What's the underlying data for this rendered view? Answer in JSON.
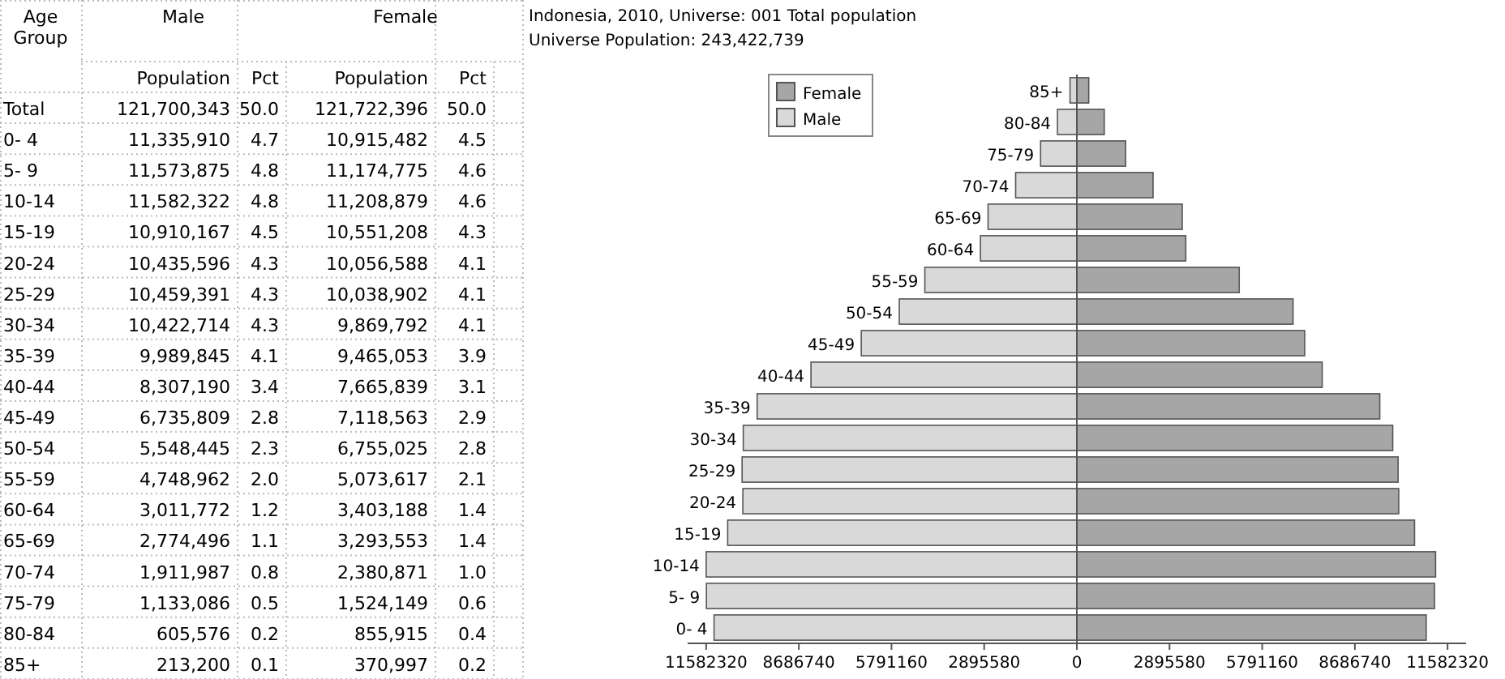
{
  "chart_data": [
    {
      "type": "other",
      "annotations": [
        "Age Group",
        "Male",
        "Female",
        "Population",
        "Pct",
        "Population",
        "Pct"
      ],
      "categories": [
        "Total",
        "0- 4",
        "5- 9",
        "10-14",
        "15-19",
        "20-24",
        "25-29",
        "30-34",
        "35-39",
        "40-44",
        "45-49",
        "50-54",
        "55-59",
        "60-64",
        "65-69",
        "70-74",
        "75-79",
        "80-84",
        "85+"
      ],
      "series": [
        {
          "values": [
            121700343,
            11335910,
            11573875,
            11582322,
            10910167,
            10435596,
            10459391,
            10422714,
            9989845,
            8307190,
            6735809,
            5548445,
            4748962,
            3011772,
            2774496,
            1911987,
            1133086,
            605576,
            213200
          ],
          "value_labels": [
            "121,700,343",
            "11,335,910",
            "11,573,875",
            "11,582,322",
            "10,910,167",
            "10,435,596",
            "10,459,391",
            "10,422,714",
            "9,989,845",
            "8,307,190",
            "6,735,809",
            "5,548,445",
            "4,748,962",
            "3,011,772",
            "2,774,496",
            "1,911,987",
            "1,133,086",
            "605,576",
            "213,200"
          ]
        },
        {
          "values": [
            50.0,
            4.7,
            4.8,
            4.8,
            4.5,
            4.3,
            4.3,
            4.3,
            4.1,
            3.4,
            2.8,
            2.3,
            2.0,
            1.2,
            1.1,
            0.8,
            0.5,
            0.2,
            0.1
          ],
          "value_labels": [
            "50.0",
            "4.7",
            "4.8",
            "4.8",
            "4.5",
            "4.3",
            "4.3",
            "4.3",
            "4.1",
            "3.4",
            "2.8",
            "2.3",
            "2.0",
            "1.2",
            "1.1",
            "0.8",
            "0.5",
            "0.2",
            "0.1"
          ]
        },
        {
          "values": [
            121722396,
            10915482,
            11174775,
            11208879,
            10551208,
            10056588,
            10038902,
            9869792,
            9465053,
            7665839,
            7118563,
            6755025,
            5073617,
            3403188,
            3293553,
            2380871,
            1524149,
            855915,
            370997
          ],
          "value_labels": [
            "121,722,396",
            "10,915,482",
            "11,174,775",
            "11,208,879",
            "10,551,208",
            "10,056,588",
            "10,038,902",
            "9,869,792",
            "9,465,053",
            "7,665,839",
            "7,118,563",
            "6,755,025",
            "5,073,617",
            "3,403,188",
            "3,293,553",
            "2,380,871",
            "1,524,149",
            "855,915",
            "370,997"
          ]
        },
        {
          "values": [
            50.0,
            4.5,
            4.6,
            4.6,
            4.3,
            4.1,
            4.1,
            4.1,
            3.9,
            3.1,
            2.9,
            2.8,
            2.1,
            1.4,
            1.4,
            1.0,
            0.6,
            0.4,
            0.2
          ],
          "value_labels": [
            "50.0",
            "4.5",
            "4.6",
            "4.6",
            "4.3",
            "4.1",
            "4.1",
            "4.1",
            "3.9",
            "3.1",
            "2.9",
            "2.8",
            "2.1",
            "1.4",
            "1.4",
            "1.0",
            "0.6",
            "0.4",
            "0.2"
          ]
        }
      ]
    },
    {
      "type": "bar",
      "orientation": "horizontal",
      "title": "Indonesia, 2010, Universe: 001 Total population",
      "subtitle": "Universe Population: 243,422,739",
      "categories": [
        "85+",
        "80-84",
        "75-79",
        "70-74",
        "65-69",
        "60-64",
        "55-59",
        "50-54",
        "45-49",
        "40-44",
        "35-39",
        "30-34",
        "25-29",
        "20-24",
        "15-19",
        "10-14",
        "5- 9",
        "0- 4"
      ],
      "series": [
        {
          "name": "Female",
          "color": "#a6a6a6",
          "values": [
            370997,
            855915,
            1524149,
            2380871,
            3293553,
            3403188,
            5073617,
            6755025,
            7118563,
            7665839,
            9465053,
            9869792,
            10038902,
            10056588,
            10551208,
            11208879,
            11174775,
            10915482
          ]
        },
        {
          "name": "Male",
          "color": "#d9d9d9",
          "values": [
            -213200,
            -605576,
            -1133086,
            -1911987,
            -2774496,
            -3011772,
            -4748962,
            -5548445,
            -6735809,
            -8307190,
            -9989845,
            -10422714,
            -10459391,
            -10435596,
            -10910167,
            -11582322,
            -11573875,
            -11335910
          ]
        }
      ],
      "xlim": [
        -12161436,
        12161436
      ],
      "stacked": true,
      "xticks": [
        {
          "value": -11582320,
          "label": "11582320"
        },
        {
          "value": -8686740,
          "label": "8686740"
        },
        {
          "value": -5791160,
          "label": "5791160"
        },
        {
          "value": -2895580,
          "label": "2895580"
        },
        0,
        2895580,
        5791160,
        8686740,
        11582320
      ],
      "legend": "top left"
    }
  ]
}
